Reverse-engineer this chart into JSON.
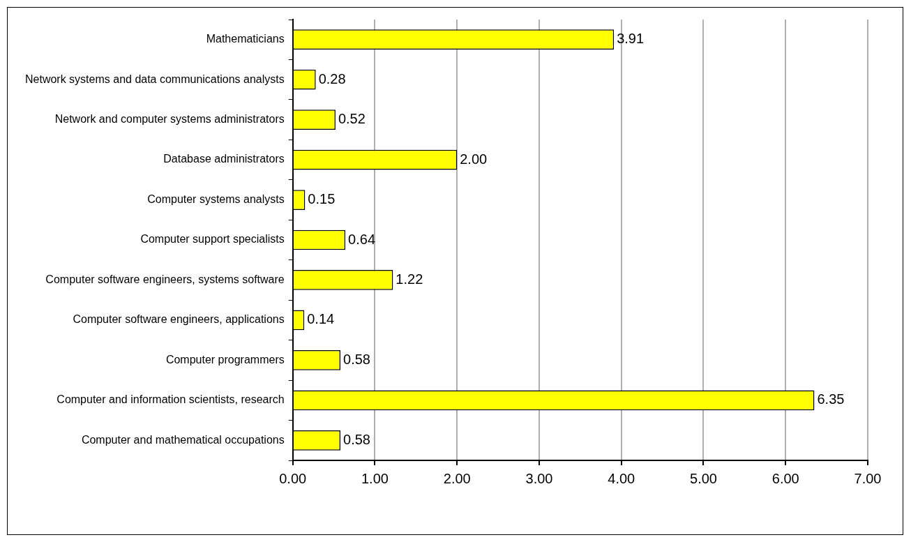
{
  "chart_data": {
    "type": "bar",
    "orientation": "horizontal",
    "categories": [
      "Mathematicians",
      "Network systems and data communications analysts",
      "Network and computer systems administrators",
      "Database administrators",
      "Computer systems analysts",
      "Computer support specialists",
      "Computer software engineers, systems software",
      "Computer software engineers, applications",
      "Computer programmers",
      "Computer and information scientists, research",
      "Computer and mathematical occupations"
    ],
    "values": [
      3.91,
      0.28,
      0.52,
      2.0,
      0.15,
      0.64,
      1.22,
      0.14,
      0.58,
      6.35,
      0.58
    ],
    "value_labels": [
      "3.91",
      "0.28",
      "0.52",
      "2.00",
      "0.15",
      "0.64",
      "1.22",
      "0.14",
      "0.58",
      "6.35",
      "0.58"
    ],
    "color": "#ffff00",
    "xlim": [
      0,
      7
    ],
    "xticks": [
      {
        "value": 0,
        "label": "0.00"
      },
      {
        "value": 1,
        "label": "1.00"
      },
      {
        "value": 2,
        "label": "2.00"
      },
      {
        "value": 3,
        "label": "3.00"
      },
      {
        "value": 4,
        "label": "4.00"
      },
      {
        "value": 5,
        "label": "5.00"
      },
      {
        "value": 6,
        "label": "6.00"
      },
      {
        "value": 7,
        "label": "7.00"
      }
    ],
    "grid": "x",
    "legend": false
  }
}
